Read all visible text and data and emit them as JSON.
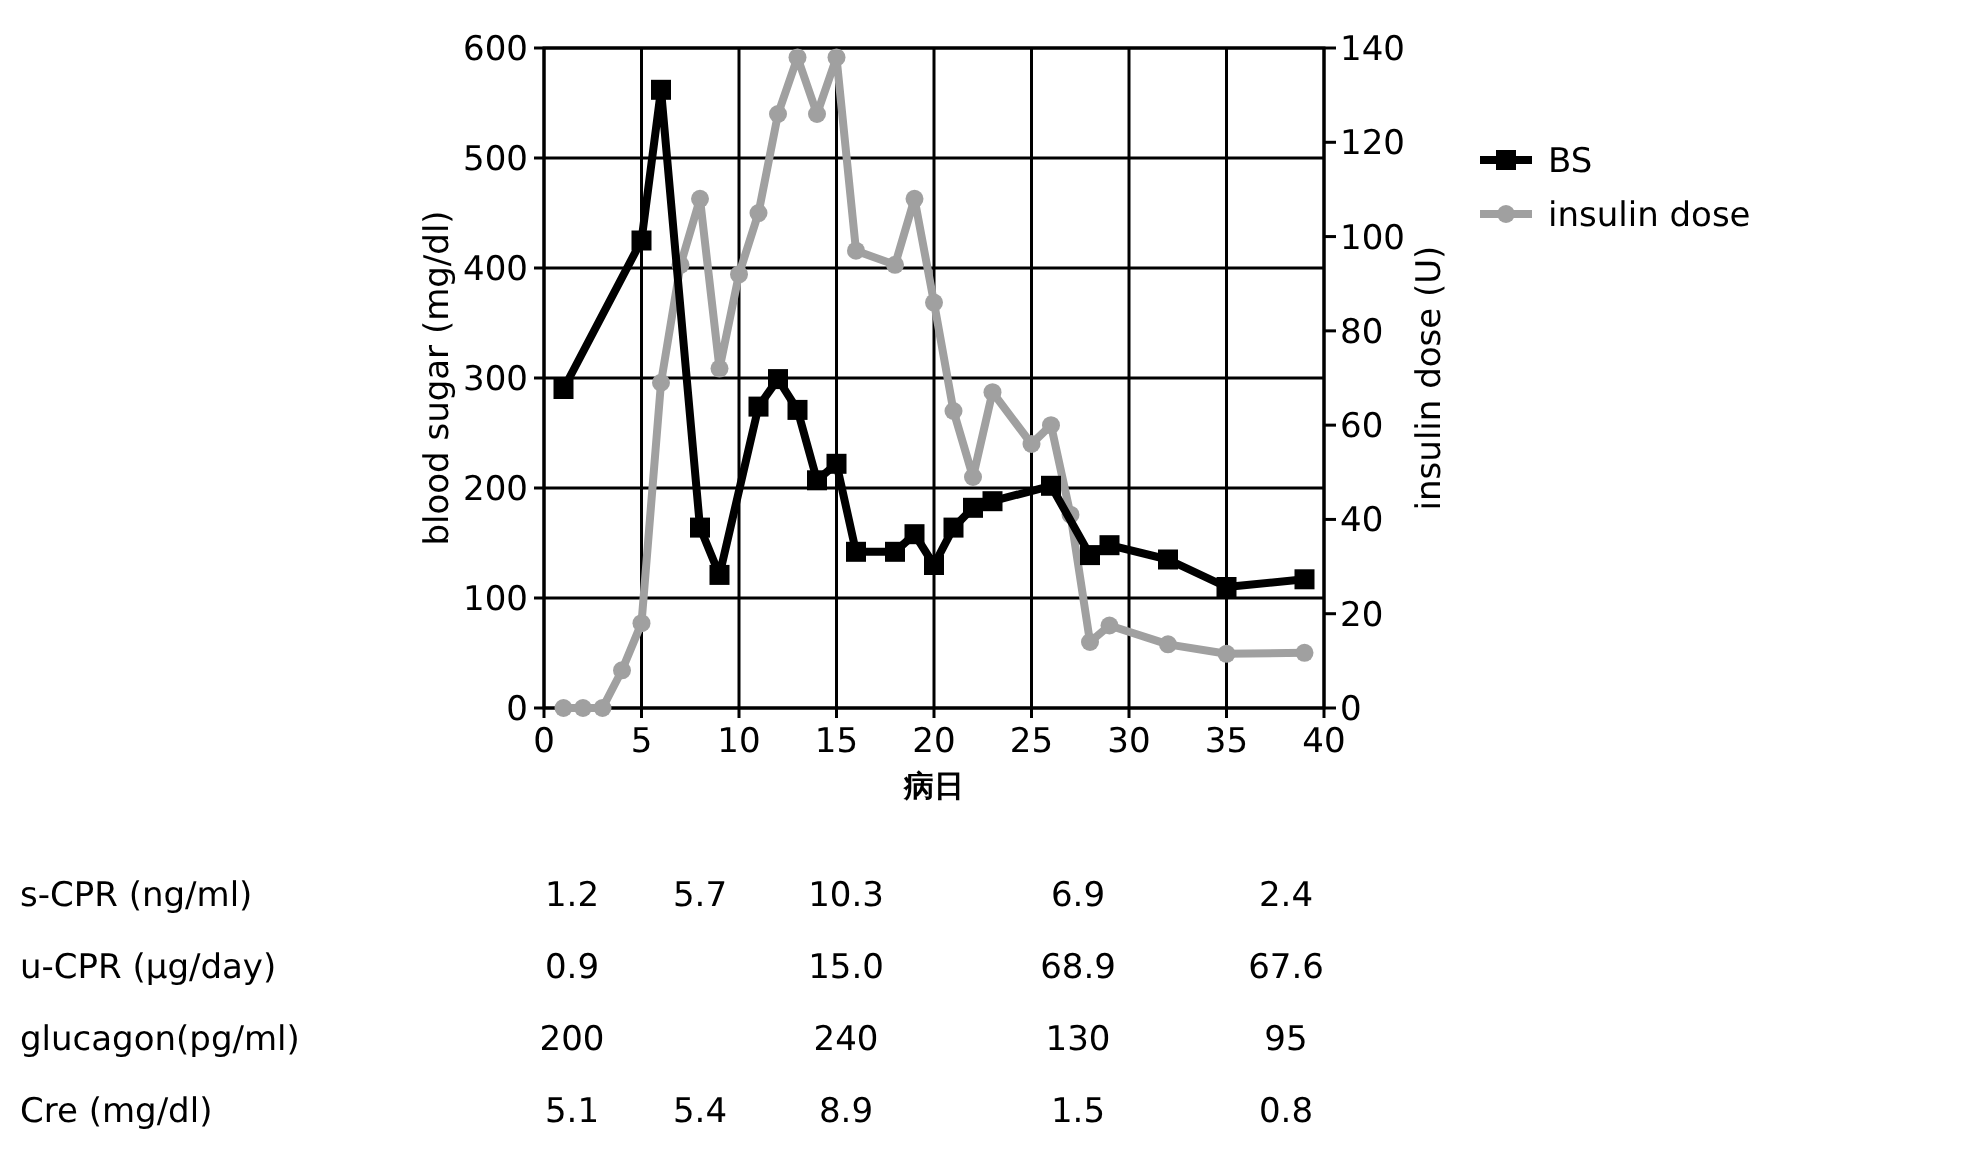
{
  "chart_data": {
    "type": "line",
    "xlabel": "病日",
    "ylabel": "blood sugar (mg/dl)",
    "y2label": "insulin dose (U)",
    "xlim": [
      0,
      40
    ],
    "xticks": [
      0,
      5,
      10,
      15,
      20,
      25,
      30,
      35,
      40
    ],
    "ylim": [
      0,
      600
    ],
    "yticks": [
      0,
      100,
      200,
      300,
      400,
      500,
      600
    ],
    "y2lim": [
      0,
      140
    ],
    "y2ticks": [
      0,
      20,
      40,
      60,
      80,
      100,
      120,
      140
    ],
    "grid": true,
    "legend": "right",
    "series": [
      {
        "name": "BS",
        "color": "#000000",
        "marker": "square",
        "x": [
          1,
          5,
          6,
          8,
          9,
          11,
          12,
          13,
          14,
          15,
          16,
          18,
          19,
          20,
          21,
          22,
          23,
          26,
          28,
          29,
          32,
          35,
          39
        ],
        "values": [
          290,
          425,
          562,
          164,
          121,
          274,
          299,
          271,
          207,
          222,
          142,
          142,
          158,
          130,
          164,
          182,
          188,
          202,
          139,
          148,
          135,
          110,
          117
        ]
      },
      {
        "name": "insulin dose",
        "color": "#a0a0a0",
        "marker": "circle",
        "axis": "y2",
        "x": [
          1,
          2,
          3,
          4,
          5,
          6,
          7,
          8,
          9,
          10,
          11,
          12,
          13,
          14,
          15,
          16,
          18,
          19,
          20,
          21,
          22,
          23,
          25,
          26,
          27,
          28,
          29,
          32,
          35,
          39
        ],
        "values": [
          0,
          0,
          0,
          8,
          18,
          69,
          94,
          108,
          72,
          92,
          105,
          126,
          138,
          126,
          138,
          97,
          94,
          108,
          86,
          63,
          49,
          67,
          56,
          60,
          41,
          14,
          17.5,
          13.5,
          11.5,
          11.7
        ]
      }
    ],
    "annotations": [
      "s-CPR (ng/ml)\t1.2\t5.7\t10.3\t6.9\t2.4",
      "u-CPR (μg/day)\t0.9\t\t15.0\t68.9\t67.6",
      "glucagon(pg/ml)\t200\t\t240\t130\t95",
      "Cre (mg/dl)\t5.1\t5.4\t8.9\t1.5\t0.8"
    ]
  }
}
